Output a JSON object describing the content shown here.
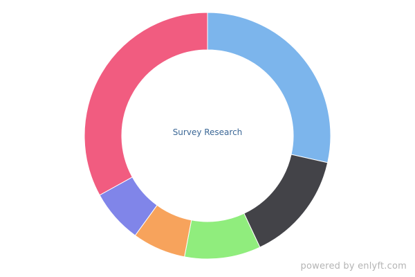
{
  "chart_data": {
    "type": "pie",
    "center_label": "Survey Research",
    "slices": [
      {
        "value": 28.5,
        "color": "#7cb5ec"
      },
      {
        "value": 14.5,
        "color": "#434348"
      },
      {
        "value": 10.0,
        "color": "#90ed7d"
      },
      {
        "value": 7.0,
        "color": "#f7a35c"
      },
      {
        "value": 7.0,
        "color": "#8085e9"
      },
      {
        "value": 33.0,
        "color": "#f15c80"
      }
    ]
  },
  "footer": {
    "text": "powered by enlyft.com"
  }
}
